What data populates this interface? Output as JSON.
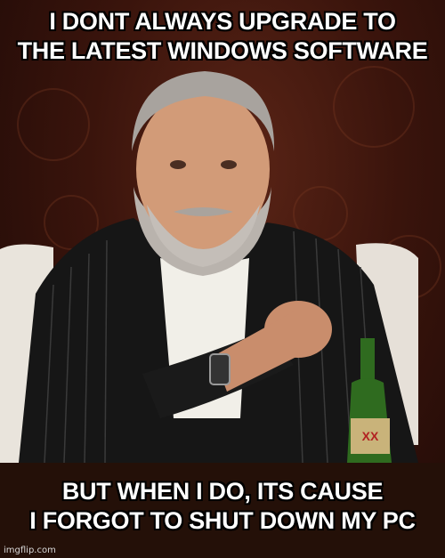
{
  "meme": {
    "top_text": [
      "I DONT ALWAYS UPGRADE TO",
      "THE LATEST WINDOWS SOFTWARE"
    ],
    "bottom_text": [
      "BUT WHEN I DO, ITS CAUSE",
      "I FORGOT TO SHUT DOWN MY PC"
    ],
    "watermark": "imgflip.com"
  },
  "colors": {
    "caption_text": "#ffffff",
    "caption_outline": "#000000",
    "background": "#3a140c",
    "suit": "#151515",
    "bottle": "#2f6b1f"
  }
}
